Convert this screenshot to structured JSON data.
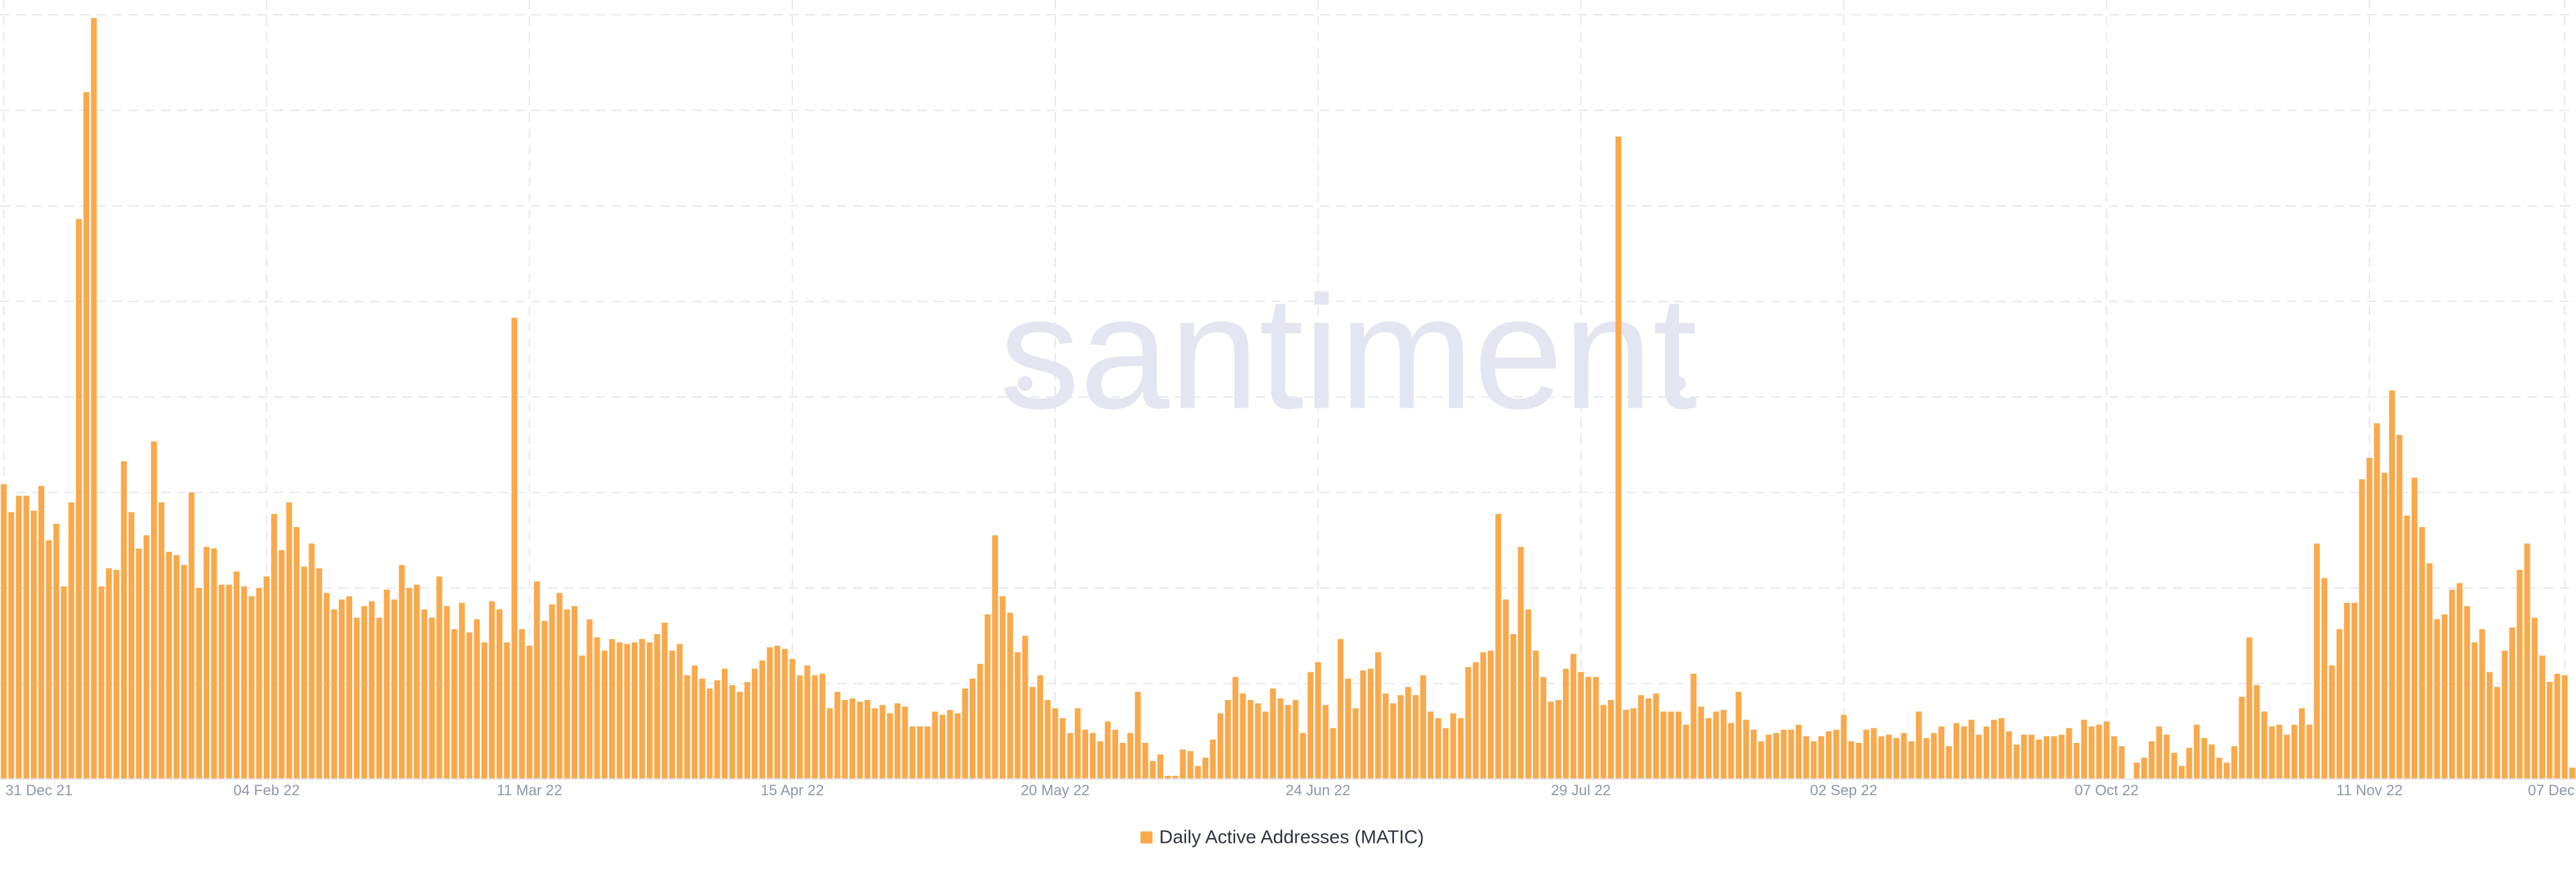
{
  "chart_data": {
    "type": "bar",
    "watermark": "santiment",
    "color": "#f9a94b",
    "ylim": [
      0,
      466
    ],
    "series": [
      {
        "name": "Daily Active Addresses (MATIC)",
        "color": "#f9a94b",
        "values": [
          179,
          162,
          172,
          172,
          163,
          178,
          145,
          155,
          117,
          168,
          340,
          417,
          462,
          117,
          128,
          127,
          193,
          162,
          140,
          148,
          205,
          168,
          138,
          136,
          130,
          174,
          116,
          141,
          140,
          118,
          118,
          126,
          117,
          111,
          116,
          123,
          161,
          139,
          168,
          153,
          129,
          143,
          128,
          113,
          103,
          109,
          111,
          98,
          105,
          108,
          98,
          115,
          109,
          130,
          116,
          118,
          103,
          98,
          123,
          105,
          91,
          107,
          89,
          97,
          83,
          108,
          103,
          83,
          280,
          91,
          81,
          120,
          96,
          106,
          113,
          103,
          105,
          75,
          97,
          86,
          78,
          85,
          83,
          82,
          83,
          85,
          83,
          88,
          95,
          78,
          82,
          63,
          69,
          61,
          55,
          60,
          67,
          57,
          53,
          59,
          67,
          72,
          80,
          81,
          79,
          73,
          63,
          69,
          63,
          64,
          43,
          53,
          48,
          49,
          47,
          48,
          43,
          45,
          40,
          46,
          44,
          32,
          32,
          32,
          41,
          39,
          42,
          40,
          55,
          61,
          70,
          100,
          148,
          111,
          101,
          77,
          87,
          56,
          63,
          48,
          43,
          37,
          28,
          43,
          30,
          28,
          23,
          35,
          30,
          22,
          28,
          53,
          22,
          11,
          15,
          2,
          2,
          18,
          17,
          8,
          13,
          24,
          40,
          48,
          62,
          52,
          48,
          46,
          41,
          55,
          49,
          45,
          48,
          28,
          65,
          71,
          45,
          31,
          85,
          61,
          43,
          66,
          67,
          77,
          52,
          46,
          51,
          56,
          51,
          63,
          41,
          37,
          31,
          40,
          37,
          68,
          71,
          77,
          78,
          161,
          109,
          88,
          141,
          103,
          78,
          62,
          47,
          48,
          67,
          76,
          65,
          62,
          62,
          45,
          48,
          390,
          42,
          43,
          51,
          49,
          52,
          41,
          41,
          41,
          33,
          64,
          44,
          37,
          41,
          42,
          34,
          53,
          36,
          30,
          23,
          27,
          28,
          30,
          30,
          33,
          26,
          23,
          26,
          29,
          30,
          39,
          23,
          22,
          30,
          31,
          26,
          27,
          25,
          28,
          23,
          41,
          25,
          28,
          32,
          20,
          34,
          32,
          36,
          27,
          32,
          36,
          37,
          29,
          21,
          27,
          27,
          24,
          26,
          26,
          27,
          31,
          22,
          36,
          32,
          33,
          35,
          26,
          20,
          0,
          10,
          13,
          23,
          32,
          27,
          16,
          8,
          19,
          33,
          25,
          21,
          13,
          10,
          20,
          50,
          86,
          57,
          41,
          32,
          33,
          27,
          33,
          43,
          33,
          143,
          122,
          69,
          91,
          107,
          107,
          182,
          195,
          216,
          186,
          236,
          209,
          160,
          183,
          153,
          131,
          97,
          100,
          115,
          119,
          105,
          83,
          91,
          65,
          56,
          78,
          92,
          127,
          143,
          98,
          75,
          59,
          64,
          63,
          7
        ]
      }
    ],
    "categories": [
      "31 Dec 21",
      null,
      null,
      null,
      null,
      null,
      null,
      null,
      null,
      null,
      null,
      null,
      null,
      null,
      null,
      null,
      null,
      null,
      null,
      null,
      null,
      null,
      null,
      null,
      null,
      null,
      null,
      null,
      null,
      null,
      null,
      null,
      null,
      null,
      null,
      "04 Feb 22",
      null,
      null,
      null,
      null,
      null,
      null,
      null,
      null,
      null,
      null,
      null,
      null,
      null,
      null,
      null,
      null,
      null,
      null,
      null,
      null,
      null,
      null,
      null,
      null,
      null,
      null,
      null,
      null,
      null,
      null,
      null,
      null,
      null,
      null,
      "11 Mar 22",
      null,
      null,
      null,
      null,
      null,
      null,
      null,
      null,
      null,
      null,
      null,
      null,
      null,
      null,
      null,
      null,
      null,
      null,
      null,
      null,
      null,
      null,
      null,
      null,
      null,
      null,
      null,
      null,
      null,
      null,
      null,
      null,
      null,
      null,
      "15 Apr 22",
      null,
      null,
      null,
      null,
      null,
      null,
      null,
      null,
      null,
      null,
      null,
      null,
      null,
      null,
      null,
      null,
      null,
      null,
      null,
      null,
      null,
      null,
      null,
      null,
      null,
      null,
      null,
      null,
      null,
      null,
      null,
      null,
      null,
      null,
      "20 May 22",
      null,
      null,
      null,
      null,
      null,
      null,
      null,
      null,
      null,
      null,
      null,
      null,
      null,
      null,
      null,
      null,
      null,
      null,
      null,
      null,
      null,
      null,
      null,
      null,
      null,
      null,
      null,
      null,
      null,
      null,
      null,
      null,
      null,
      null,
      "24 Jun 22",
      null,
      null,
      null,
      null,
      null,
      null,
      null,
      null,
      null,
      null,
      null,
      null,
      null,
      null,
      null,
      null,
      null,
      null,
      null,
      null,
      null,
      null,
      null,
      null,
      null,
      null,
      null,
      null,
      null,
      null,
      null,
      null,
      null,
      null,
      "29 Jul 22",
      null,
      null,
      null,
      null,
      null,
      null,
      null,
      null,
      null,
      null,
      null,
      null,
      null,
      null,
      null,
      null,
      null,
      null,
      null,
      null,
      null,
      null,
      null,
      null,
      null,
      null,
      null,
      null,
      null,
      null,
      null,
      null,
      null,
      null,
      "02 Sep 22",
      null,
      null,
      null,
      null,
      null,
      null,
      null,
      null,
      null,
      null,
      null,
      null,
      null,
      null,
      null,
      null,
      null,
      null,
      null,
      null,
      null,
      null,
      null,
      null,
      null,
      null,
      null,
      null,
      null,
      null,
      null,
      null,
      null,
      null,
      "07 Oct 22",
      null,
      null,
      null,
      null,
      null,
      null,
      null,
      null,
      null,
      null,
      null,
      null,
      null,
      null,
      null,
      null,
      null,
      null,
      null,
      null,
      null,
      null,
      null,
      null,
      null,
      null,
      null,
      null,
      null,
      null,
      null,
      null,
      null,
      null,
      "11 Nov 22",
      null,
      null,
      null,
      null,
      null,
      null,
      null,
      null,
      null,
      null,
      null,
      null,
      null,
      null,
      null,
      null,
      null,
      null,
      null,
      null,
      null,
      null,
      null,
      null,
      null,
      "07 Dec",
      null
    ]
  }
}
